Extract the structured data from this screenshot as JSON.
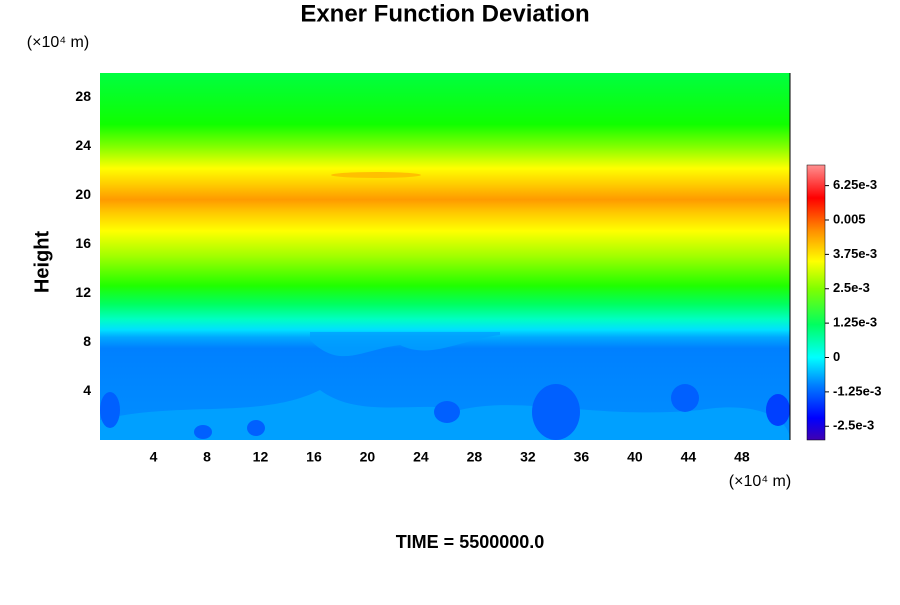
{
  "chart_data": {
    "type": "contour",
    "title": "Exner Function Deviation",
    "y_label": "Height",
    "y_unit": "(×10⁴ m)",
    "x_unit": "(×10⁴ m)",
    "time_label": "TIME = 5500000.0",
    "xlim": [
      0,
      51.6
    ],
    "xticks": [
      4,
      8,
      12,
      16,
      20,
      24,
      28,
      32,
      36,
      40,
      44,
      48
    ],
    "ylim": [
      0,
      30
    ],
    "yticks": [
      4,
      8,
      12,
      16,
      20,
      24,
      28
    ],
    "clim": [
      -0.003,
      0.007
    ],
    "cticks": [
      {
        "value": 0.00625,
        "label": "6.25e-3"
      },
      0.005,
      {
        "value": 0.00375,
        "label": "3.75e-3"
      },
      {
        "value": 0.0025,
        "label": "2.5e-3"
      },
      {
        "value": 0.00125,
        "label": "1.25e-3"
      },
      0,
      {
        "value": -0.00125,
        "label": "-1.25e-3"
      },
      {
        "value": -0.0025,
        "label": "-2.5e-3"
      }
    ]
  }
}
